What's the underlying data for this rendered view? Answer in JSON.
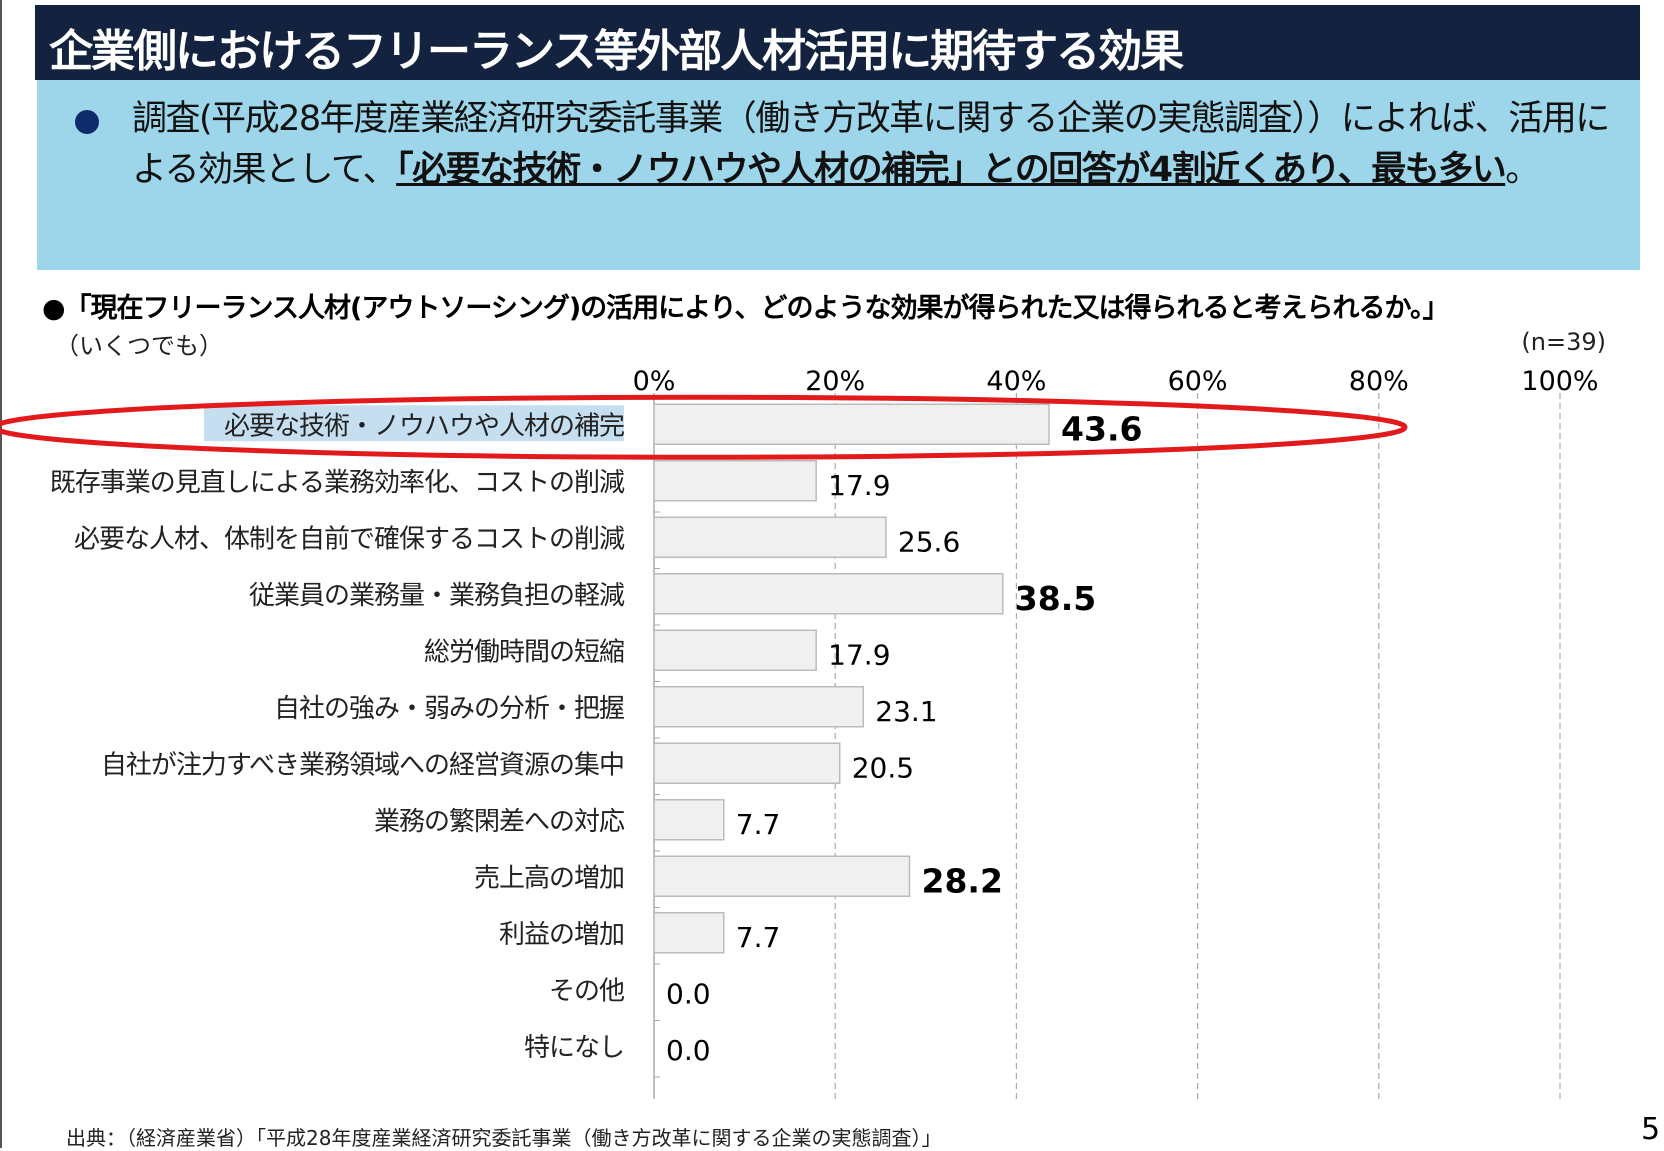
{
  "title": "企業側におけるフリーランス等外部人材活用に期待する効果",
  "summary": {
    "text_plain": "調査(平成28年度産業経済研究委託事業（働き方改革に関する企業の実態調査））によれば、活用による効果として、",
    "text_emphasis": "「必要な技術・ノウハウや人材の補完」との回答が4割近くあり、最も多い",
    "text_end": "。"
  },
  "question": "●「現在フリーランス人材(アウトソーシング)の活用により、どのような効果が得られた又は得られると考えられるか。」",
  "multi_answer_note": "（いくつでも）",
  "sample_size": "(n=39)",
  "chart_data": {
    "type": "bar",
    "orientation": "horizontal",
    "categories": [
      "必要な技術・ノウハウや人材の補完",
      "既存事業の見直しによる業務効率化、コストの削減",
      "必要な人材、体制を自前で確保するコストの削減",
      "従業員の業務量・業務負担の軽減",
      "総労働時間の短縮",
      "自社の強み・弱みの分析・把握",
      "自社が注力すべき業務領域への経営資源の集中",
      "業務の繁閑差への対応",
      "売上高の増加",
      "利益の増加",
      "その他",
      "特になし"
    ],
    "values": [
      43.6,
      17.9,
      25.6,
      38.5,
      17.9,
      23.1,
      20.5,
      7.7,
      28.2,
      7.7,
      0.0,
      0.0
    ],
    "value_labels": [
      "43.6",
      "17.9",
      "25.6",
      "38.5",
      "17.9",
      "23.1",
      "20.5",
      "7.7",
      "28.2",
      "7.7",
      "0.0",
      "0.0"
    ],
    "emphasized": [
      true,
      false,
      false,
      true,
      false,
      false,
      false,
      false,
      true,
      false,
      false,
      false
    ],
    "highlighted_category": "必要な技術・ノウハウや人材の補完",
    "xlim": [
      0,
      100
    ],
    "xticks": [
      "0%",
      "20%",
      "40%",
      "60%",
      "80%",
      "100%"
    ],
    "grid": true,
    "bar_color": "#f0f0f0",
    "highlight_color": "#e31a1c",
    "unit": "%"
  },
  "source": "出典：（経済産業省）「平成28年度産業経済研究委託事業（働き方改革に関する企業の実態調査）」",
  "page_number": "5"
}
